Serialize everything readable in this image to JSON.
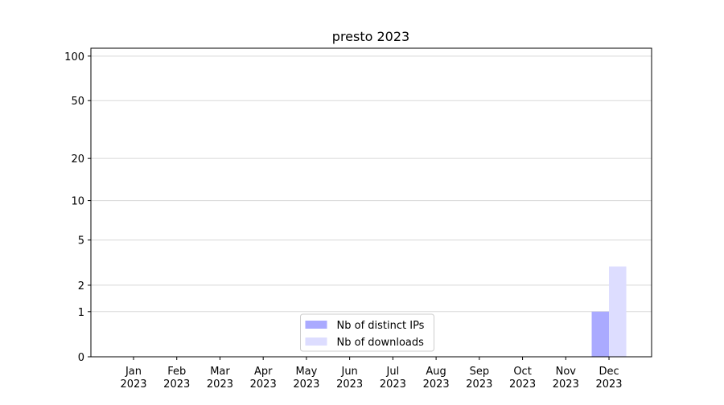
{
  "chart_data": {
    "type": "bar",
    "title": "presto 2023",
    "categories": [
      "Jan\n2023",
      "Feb\n2023",
      "Mar\n2023",
      "Apr\n2023",
      "May\n2023",
      "Jun\n2023",
      "Jul\n2023",
      "Aug\n2023",
      "Sep\n2023",
      "Oct\n2023",
      "Nov\n2023",
      "Dec\n2023"
    ],
    "series": [
      {
        "name": "Nb of distinct IPs",
        "color": "#aaaaff",
        "values": [
          0,
          0,
          0,
          0,
          0,
          0,
          0,
          0,
          0,
          0,
          0,
          1
        ]
      },
      {
        "name": "Nb of downloads",
        "color": "#ddddff",
        "values": [
          0,
          0,
          0,
          0,
          0,
          0,
          0,
          0,
          0,
          0,
          0,
          3
        ]
      }
    ],
    "yscale": "log1p",
    "ylim": [
      0,
      113
    ],
    "yticks": [
      0,
      1,
      2,
      5,
      10,
      20,
      50,
      100
    ],
    "grid": true,
    "legend": "lower center"
  }
}
